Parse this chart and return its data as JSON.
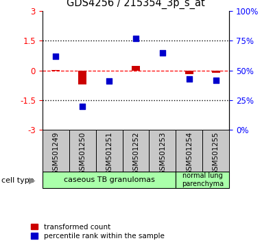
{
  "title": "GDS4256 / 215354_3p_s_at",
  "samples": [
    "GSM501249",
    "GSM501250",
    "GSM501251",
    "GSM501252",
    "GSM501253",
    "GSM501254",
    "GSM501255"
  ],
  "transformed_count": [
    0.02,
    -0.72,
    -0.02,
    0.22,
    0.0,
    -0.18,
    -0.12
  ],
  "percentile_rank": [
    62,
    20,
    41,
    77,
    65,
    43,
    42
  ],
  "ylim": [
    -3,
    3
  ],
  "yticks_left": [
    -3,
    -1.5,
    0,
    1.5,
    3
  ],
  "yticks_right": [
    0,
    25,
    50,
    75,
    100
  ],
  "dotted_lines": [
    -1.5,
    1.5
  ],
  "bar_color": "#cc0000",
  "dot_color": "#0000cc",
  "cell_type_labels": [
    "caseous TB granulomas",
    "normal lung\nparenchyma"
  ],
  "cell_type_groups": [
    5,
    2
  ],
  "legend_red": "transformed count",
  "legend_blue": "percentile rank within the sample",
  "sample_box_color": "#c8c8c8",
  "cell_type_color": "#aaffaa"
}
